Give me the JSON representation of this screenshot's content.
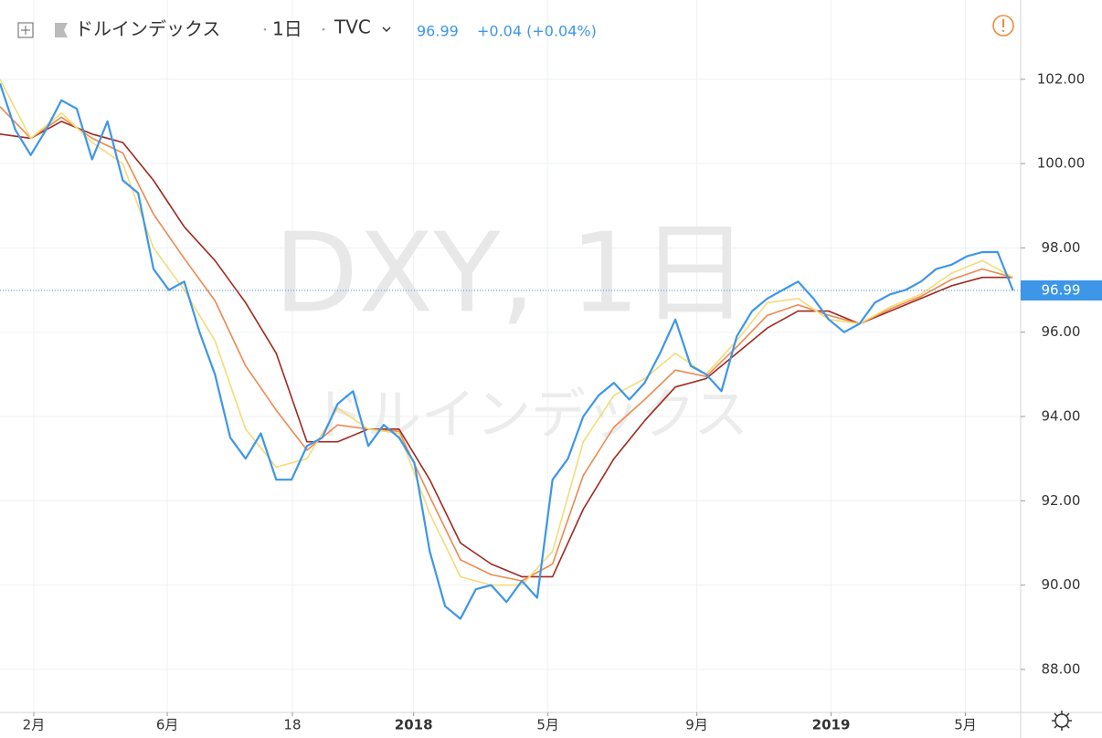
{
  "header": {
    "name": "ドルインデックス",
    "sep": "・",
    "interval": "1日",
    "exchange": "TVC",
    "price": "96.99",
    "change": "+0.04 (+0.04%)"
  },
  "watermark": {
    "symbol": "DXY, 1日",
    "name": "ドルインデックス"
  },
  "chart_data": {
    "type": "line",
    "xlim": [
      0,
      133
    ],
    "ylim": [
      86.98,
      103.88
    ],
    "xticks": [
      {
        "value": 4.4,
        "label": "2月"
      },
      {
        "value": 21.8,
        "label": "6月"
      },
      {
        "value": 38.1,
        "label": "18"
      },
      {
        "value": 53.9,
        "label": "2018"
      },
      {
        "value": 71.4,
        "label": "5月"
      },
      {
        "value": 90.8,
        "label": "9月"
      },
      {
        "value": 108.3,
        "label": "2019"
      },
      {
        "value": 125.8,
        "label": "5月"
      }
    ],
    "yticks": [
      {
        "value": 88,
        "label": "88.00"
      },
      {
        "value": 90,
        "label": "90.00"
      },
      {
        "value": 92,
        "label": "92.00"
      },
      {
        "value": 94,
        "label": "94.00"
      },
      {
        "value": 96,
        "label": "96.00"
      },
      {
        "value": 98,
        "label": "98.00"
      },
      {
        "value": 100,
        "label": "100.00"
      },
      {
        "value": 102,
        "label": "102.00"
      }
    ],
    "grid": true,
    "series": [
      {
        "color": "#a0281e",
        "x": [
          0,
          4,
          8,
          12,
          16,
          20,
          24,
          28,
          32,
          36,
          40,
          44,
          48,
          52,
          56,
          60,
          64,
          68,
          72,
          76,
          80,
          84,
          88,
          92,
          96,
          100,
          104,
          108,
          112,
          116,
          120,
          124,
          128,
          132
        ],
        "values": [
          100.7,
          100.6,
          101.0,
          100.7,
          100.5,
          99.6,
          98.5,
          97.7,
          96.7,
          95.5,
          93.4,
          93.4,
          93.7,
          93.7,
          92.5,
          91.0,
          90.5,
          90.2,
          90.2,
          91.8,
          93.0,
          93.9,
          94.7,
          94.9,
          95.5,
          96.1,
          96.5,
          96.5,
          96.2,
          96.5,
          96.8,
          97.1,
          97.3,
          97.3
        ]
      },
      {
        "color": "#ec8a50",
        "x": [
          0,
          4,
          8,
          12,
          16,
          20,
          24,
          28,
          32,
          36,
          40,
          44,
          48,
          52,
          56,
          60,
          64,
          68,
          72,
          76,
          80,
          84,
          88,
          92,
          96,
          100,
          104,
          108,
          112,
          116,
          120,
          124,
          128,
          132
        ],
        "values": [
          101.35,
          100.6,
          101.1,
          100.6,
          100.25,
          98.8,
          97.75,
          96.75,
          95.2,
          94.15,
          93.2,
          93.8,
          93.7,
          93.65,
          92.1,
          90.6,
          90.25,
          90.1,
          90.5,
          92.6,
          93.75,
          94.4,
          95.1,
          94.95,
          95.65,
          96.4,
          96.65,
          96.4,
          96.2,
          96.55,
          96.85,
          97.25,
          97.5,
          97.3
        ]
      },
      {
        "color": "#f3dc78",
        "x": [
          0,
          4,
          8,
          12,
          16,
          20,
          24,
          28,
          32,
          36,
          40,
          44,
          48,
          52,
          56,
          60,
          64,
          68,
          72,
          76,
          80,
          84,
          88,
          92,
          96,
          100,
          104,
          108,
          112,
          116,
          120,
          124,
          128,
          132
        ],
        "values": [
          102.0,
          100.6,
          101.2,
          100.5,
          100.0,
          98.0,
          97.0,
          95.8,
          93.7,
          92.8,
          93.0,
          94.2,
          93.7,
          93.6,
          91.7,
          90.2,
          90.0,
          90.0,
          90.8,
          93.4,
          94.5,
          94.9,
          95.5,
          95.0,
          95.8,
          96.7,
          96.8,
          96.3,
          96.2,
          96.6,
          96.9,
          97.4,
          97.7,
          97.3
        ]
      },
      {
        "color": "#3d96e8",
        "x": [
          0,
          2,
          4,
          6,
          8,
          10,
          12,
          14,
          16,
          18,
          20,
          22,
          24,
          26,
          28,
          30,
          32,
          34,
          36,
          38,
          40,
          42,
          44,
          46,
          48,
          50,
          52,
          54,
          56,
          58,
          60,
          62,
          64,
          66,
          68,
          70,
          72,
          74,
          76,
          78,
          80,
          82,
          84,
          86,
          88,
          90,
          92,
          94,
          96,
          98,
          100,
          102,
          104,
          106,
          108,
          110,
          112,
          114,
          116,
          118,
          120,
          122,
          124,
          126,
          128,
          130,
          132
        ],
        "values": [
          101.9,
          100.8,
          100.2,
          100.8,
          101.5,
          101.3,
          100.1,
          101.0,
          99.6,
          99.3,
          97.5,
          97.0,
          97.2,
          96.0,
          95.0,
          93.5,
          93.0,
          93.6,
          92.5,
          92.5,
          93.3,
          93.5,
          94.3,
          94.6,
          93.3,
          93.8,
          93.5,
          92.9,
          90.8,
          89.5,
          89.2,
          89.9,
          90.0,
          89.6,
          90.1,
          89.7,
          92.5,
          93.0,
          94.0,
          94.5,
          94.8,
          94.4,
          94.8,
          95.5,
          96.3,
          95.2,
          95.0,
          94.6,
          95.9,
          96.5,
          96.8,
          97.0,
          97.2,
          96.8,
          96.3,
          96.0,
          96.2,
          96.7,
          96.9,
          97.0,
          97.2,
          97.5,
          97.6,
          97.8,
          97.9,
          97.9,
          96.99
        ]
      }
    ]
  }
}
